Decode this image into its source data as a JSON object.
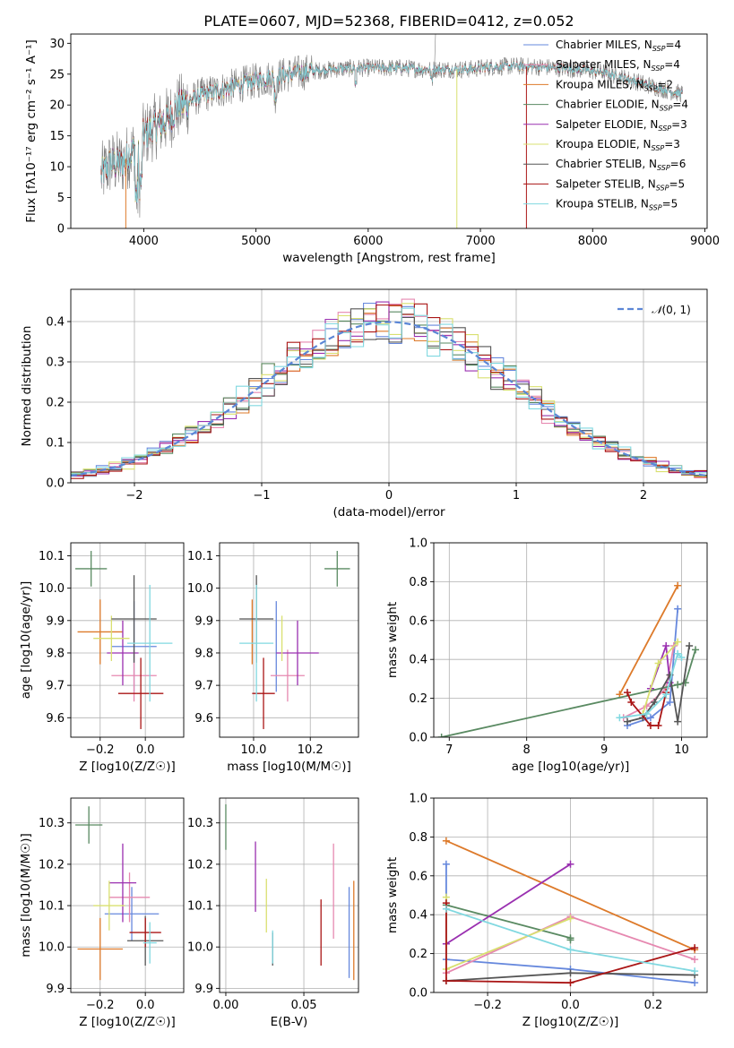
{
  "figure_title": "PLATE=0607, MJD=52368, FIBERID=0412, z=0.052",
  "colors": {
    "Chabrier MILES": "#6688dd",
    "Salpeter MILES": "#e688b0",
    "Kroupa MILES": "#dd7a2a",
    "Chabrier ELODIE": "#5a8a62",
    "Salpeter ELODIE": "#9a30b0",
    "Kroupa ELODIE": "#d9e070",
    "Chabrier STELIB": "#555555",
    "Salpeter STELIB": "#aa1515",
    "Kroupa STELIB": "#80d8e0"
  },
  "chart_data": [
    {
      "id": "spectrum",
      "type": "line",
      "title": "PLATE=0607, MJD=52368, FIBERID=0412, z=0.052",
      "xlabel": "wavelength [Angstrom, rest frame]",
      "ylabel": "Flux [fλ10⁻¹⁷ erg cm⁻² s⁻¹ A⁻¹]",
      "xlim": [
        3350,
        9020
      ],
      "ylim": [
        0,
        31.5
      ],
      "xticks": [
        4000,
        5000,
        6000,
        7000,
        8000,
        9000
      ],
      "yticks": [
        0,
        5,
        10,
        15,
        20,
        25,
        30
      ],
      "legend_location": "top-right",
      "legend": [
        "Chabrier MILES, NSSP=4",
        "Salpeter MILES, NSSP=4",
        "Kroupa MILES, NSSP=2",
        "Chabrier ELODIE, NSSP=4",
        "Salpeter ELODIE, NSSP=3",
        "Kroupa ELODIE, NSSP=3",
        "Chabrier STELIB, NSSP=6",
        "Salpeter STELIB, NSSP=5",
        "Kroupa STELIB, NSSP=5"
      ],
      "continuum": {
        "x": [
          3620,
          3700,
          3800,
          3900,
          4000,
          4100,
          4200,
          4300,
          4400,
          4500,
          4700,
          4900,
          5100,
          5300,
          5500,
          5700,
          5900,
          6100,
          6300,
          6500,
          6700,
          6900,
          7100,
          7300,
          7500,
          7700,
          7900,
          8100,
          8300,
          8500,
          8700,
          8800
        ],
        "y": [
          8.5,
          10.5,
          10.5,
          12.5,
          15,
          16.5,
          17.5,
          19.5,
          20.5,
          21.5,
          22.5,
          23.5,
          24.3,
          25,
          25.5,
          25.8,
          26,
          26,
          26,
          25.8,
          25.8,
          25.8,
          26.2,
          26.3,
          26.2,
          26,
          25.7,
          25.3,
          24.3,
          23.2,
          22.2,
          21.8
        ]
      },
      "notes": "data spectrum drawn in grey behind nine overlapping model spectra"
    },
    {
      "id": "residuals",
      "type": "histogram",
      "xlabel": "(data-model)/error",
      "ylabel": "Normed distribution",
      "xlim": [
        -2.5,
        2.5
      ],
      "ylim": [
        0,
        0.48
      ],
      "xticks": [
        -2,
        -1,
        0,
        1,
        2
      ],
      "yticks": [
        0,
        0.1,
        0.2,
        0.3,
        0.4
      ],
      "bin_width": 0.1,
      "reference_curve": "N(0,1)",
      "legend_location": "top-right"
    },
    {
      "id": "age_vs_Z",
      "type": "scatter",
      "xlabel": "Z [log10(Z/Z☉)]",
      "ylabel": "age  [log10(age/yr)]",
      "xlim": [
        -0.33,
        0.17
      ],
      "ylim": [
        9.54,
        10.14
      ],
      "xticks": [
        -0.2,
        0.0
      ],
      "yticks": [
        9.6,
        9.7,
        9.8,
        9.9,
        10.0,
        10.1
      ],
      "points": [
        {
          "model": "Chabrier MILES",
          "x": -0.05,
          "xerr": 0.1,
          "y": 9.82,
          "yerr": 0.14
        },
        {
          "model": "Salpeter MILES",
          "x": -0.05,
          "xerr": 0.1,
          "y": 9.73,
          "yerr": 0.08
        },
        {
          "model": "Kroupa MILES",
          "x": -0.2,
          "xerr": 0.1,
          "y": 9.865,
          "yerr": 0.1
        },
        {
          "model": "Chabrier ELODIE",
          "x": -0.24,
          "xerr": 0.07,
          "y": 10.06,
          "yerr": 0.055
        },
        {
          "model": "Salpeter ELODIE",
          "x": -0.1,
          "xerr": 0.07,
          "y": 9.8,
          "yerr": 0.1
        },
        {
          "model": "Kroupa ELODIE",
          "x": -0.15,
          "xerr": 0.08,
          "y": 9.845,
          "yerr": 0.07
        },
        {
          "model": "Chabrier STELIB",
          "x": -0.05,
          "xerr": 0.1,
          "y": 9.905,
          "yerr": 0.135
        },
        {
          "model": "Salpeter STELIB",
          "x": -0.02,
          "xerr": 0.1,
          "y": 9.675,
          "yerr": 0.11
        },
        {
          "model": "Kroupa STELIB",
          "x": 0.02,
          "xerr": 0.1,
          "y": 9.83,
          "yerr": 0.18
        }
      ]
    },
    {
      "id": "age_vs_mass",
      "type": "scatter",
      "xlabel": "mass [log10(M/M☉)]",
      "xlim": [
        9.88,
        10.37
      ],
      "ylim": [
        9.54,
        10.14
      ],
      "xticks": [
        10.0,
        10.2
      ],
      "yticks": [
        9.6,
        9.7,
        9.8,
        9.9,
        10.0,
        10.1
      ],
      "points": [
        {
          "model": "Chabrier MILES",
          "x": 10.08,
          "xerr": 0.0,
          "y": 9.82,
          "yerr": 0.14
        },
        {
          "model": "Salpeter MILES",
          "x": 10.12,
          "xerr": 0.06,
          "y": 9.73,
          "yerr": 0.08
        },
        {
          "model": "Kroupa MILES",
          "x": 9.995,
          "xerr": 0.0,
          "y": 9.865,
          "yerr": 0.1
        },
        {
          "model": "Chabrier ELODIE",
          "x": 10.295,
          "xerr": 0.045,
          "y": 10.06,
          "yerr": 0.055
        },
        {
          "model": "Salpeter ELODIE",
          "x": 10.155,
          "xerr": 0.075,
          "y": 9.8,
          "yerr": 0.1
        },
        {
          "model": "Kroupa ELODIE",
          "x": 10.1,
          "xerr": 0.0,
          "y": 9.845,
          "yerr": 0.07
        },
        {
          "model": "Chabrier STELIB",
          "x": 10.01,
          "xerr": 0.06,
          "y": 9.905,
          "yerr": 0.135
        },
        {
          "model": "Salpeter STELIB",
          "x": 10.035,
          "xerr": 0.04,
          "y": 9.675,
          "yerr": 0.11
        },
        {
          "model": "Kroupa STELIB",
          "x": 10.01,
          "xerr": 0.06,
          "y": 9.83,
          "yerr": 0.18
        }
      ]
    },
    {
      "id": "weight_vs_age",
      "type": "line",
      "xlabel": "age  [log10(age/yr)]",
      "ylabel": "mass weight",
      "xlim": [
        6.8,
        10.33
      ],
      "ylim": [
        0,
        1.0
      ],
      "xticks": [
        7,
        8,
        9,
        10
      ],
      "yticks": [
        0.0,
        0.2,
        0.4,
        0.6,
        0.8,
        1.0
      ],
      "series": [
        {
          "model": "Chabrier MILES",
          "x": [
            9.3,
            9.6,
            9.85,
            9.95
          ],
          "y": [
            0.06,
            0.1,
            0.18,
            0.66
          ]
        },
        {
          "model": "Salpeter MILES",
          "x": [
            9.25,
            9.55,
            9.8,
            9.9
          ],
          "y": [
            0.1,
            0.16,
            0.25,
            0.47
          ]
        },
        {
          "model": "Kroupa MILES",
          "x": [
            9.2,
            9.95
          ],
          "y": [
            0.22,
            0.78
          ]
        },
        {
          "model": "Chabrier ELODIE",
          "x": [
            6.9,
            9.95,
            10.05,
            10.18
          ],
          "y": [
            0.0,
            0.27,
            0.28,
            0.45
          ]
        },
        {
          "model": "Salpeter ELODIE",
          "x": [
            9.6,
            9.8,
            9.85
          ],
          "y": [
            0.25,
            0.47,
            0.28
          ]
        },
        {
          "model": "Kroupa ELODIE",
          "x": [
            9.5,
            9.7,
            9.95
          ],
          "y": [
            0.12,
            0.38,
            0.49
          ]
        },
        {
          "model": "Chabrier STELIB",
          "x": [
            9.3,
            9.5,
            9.65,
            9.85,
            9.95,
            10.1
          ],
          "y": [
            0.08,
            0.1,
            0.18,
            0.32,
            0.08,
            0.47
          ]
        },
        {
          "model": "Salpeter STELIB",
          "x": [
            9.3,
            9.35,
            9.6,
            9.7,
            9.8
          ],
          "y": [
            0.23,
            0.18,
            0.06,
            0.06,
            0.23
          ]
        },
        {
          "model": "Kroupa STELIB",
          "x": [
            9.2,
            9.55,
            9.8,
            9.95,
            10.0
          ],
          "y": [
            0.1,
            0.12,
            0.22,
            0.43,
            0.41
          ]
        }
      ]
    },
    {
      "id": "mass_vs_Z",
      "type": "scatter",
      "xlabel": "Z [log10(Z/Z☉)]",
      "ylabel": "mass [log10(M/M☉)]",
      "xlim": [
        -0.33,
        0.17
      ],
      "ylim": [
        9.89,
        10.36
      ],
      "xticks": [
        -0.2,
        0.0
      ],
      "yticks": [
        9.9,
        10.0,
        10.1,
        10.2,
        10.3
      ],
      "points": [
        {
          "model": "Chabrier MILES",
          "x": -0.06,
          "xerr": 0.12,
          "y": 10.08,
          "yerr": 0.065
        },
        {
          "model": "Salpeter MILES",
          "x": -0.07,
          "xerr": 0.09,
          "y": 10.12,
          "yerr": 0.06
        },
        {
          "model": "Kroupa MILES",
          "x": -0.2,
          "xerr": 0.1,
          "y": 9.995,
          "yerr": 0.075
        },
        {
          "model": "Chabrier ELODIE",
          "x": -0.25,
          "xerr": 0.06,
          "y": 10.295,
          "yerr": 0.045
        },
        {
          "model": "Salpeter ELODIE",
          "x": -0.1,
          "xerr": 0.06,
          "y": 10.155,
          "yerr": 0.095
        },
        {
          "model": "Kroupa ELODIE",
          "x": -0.16,
          "xerr": 0.07,
          "y": 10.1,
          "yerr": 0.06
        },
        {
          "model": "Chabrier STELIB",
          "x": 0.0,
          "xerr": 0.08,
          "y": 10.015,
          "yerr": 0.06
        },
        {
          "model": "Salpeter STELIB",
          "x": 0.0,
          "xerr": 0.07,
          "y": 10.035,
          "yerr": 0.035
        },
        {
          "model": "Kroupa STELIB",
          "x": 0.02,
          "xerr": 0.03,
          "y": 10.01,
          "yerr": 0.05
        }
      ]
    },
    {
      "id": "mass_vs_EBV",
      "type": "scatter",
      "xlabel": "E(B-V)",
      "xlim": [
        -0.004,
        0.085
      ],
      "ylim": [
        9.89,
        10.36
      ],
      "xticks": [
        0.0,
        0.05
      ],
      "yticks": [
        9.9,
        10.0,
        10.1,
        10.2,
        10.3
      ],
      "points": [
        {
          "model": "Chabrier MILES",
          "x": 0.079,
          "y": 10.035,
          "yerr": 0.11
        },
        {
          "model": "Salpeter MILES",
          "x": 0.069,
          "y": 10.135,
          "yerr": 0.115
        },
        {
          "model": "Kroupa MILES",
          "x": 0.082,
          "y": 10.04,
          "yerr": 0.12
        },
        {
          "model": "Chabrier ELODIE",
          "x": 0.0,
          "y": 10.29,
          "yerr": 0.055
        },
        {
          "model": "Salpeter ELODIE",
          "x": 0.019,
          "y": 10.17,
          "yerr": 0.085
        },
        {
          "model": "Kroupa ELODIE",
          "x": 0.026,
          "y": 10.1,
          "yerr": 0.065
        },
        {
          "model": "Chabrier STELIB",
          "x": 0.03,
          "y": 9.995,
          "yerr": 0.04
        },
        {
          "model": "Salpeter STELIB",
          "x": 0.061,
          "y": 10.035,
          "yerr": 0.08
        },
        {
          "model": "Kroupa STELIB",
          "x": 0.03,
          "y": 10.0,
          "yerr": 0.04
        }
      ]
    },
    {
      "id": "weight_vs_Z",
      "type": "line",
      "xlabel": "Z [log10(Z/Z☉)]",
      "ylabel": "mass weight",
      "xlim": [
        -0.33,
        0.33
      ],
      "ylim": [
        0,
        1.0
      ],
      "xticks": [
        -0.2,
        0.0,
        0.2
      ],
      "yticks": [
        0.0,
        0.2,
        0.4,
        0.6,
        0.8,
        1.0
      ],
      "series": [
        {
          "model": "Chabrier MILES",
          "x": [
            -0.3,
            -0.3,
            0.0,
            0.3
          ],
          "y": [
            0.66,
            0.17,
            0.12,
            0.05
          ]
        },
        {
          "model": "Salpeter MILES",
          "x": [
            -0.3,
            0.0,
            0.3
          ],
          "y": [
            0.1,
            0.39,
            0.17
          ]
        },
        {
          "model": "Kroupa MILES",
          "x": [
            -0.3,
            0.3
          ],
          "y": [
            0.78,
            0.22
          ]
        },
        {
          "model": "Chabrier ELODIE",
          "x": [
            -0.3,
            0.0,
            0.0
          ],
          "y": [
            0.45,
            0.28,
            0.27
          ]
        },
        {
          "model": "Salpeter ELODIE",
          "x": [
            -0.3,
            0.0
          ],
          "y": [
            0.25,
            0.66
          ]
        },
        {
          "model": "Kroupa ELODIE",
          "x": [
            -0.3,
            -0.3,
            0.0
          ],
          "y": [
            0.49,
            0.12,
            0.38
          ]
        },
        {
          "model": "Chabrier STELIB",
          "x": [
            -0.3,
            0.0,
            0.3
          ],
          "y": [
            0.06,
            0.1,
            0.09
          ]
        },
        {
          "model": "Salpeter STELIB",
          "x": [
            -0.3,
            -0.3,
            0.0,
            0.3
          ],
          "y": [
            0.46,
            0.06,
            0.05,
            0.23
          ]
        },
        {
          "model": "Kroupa STELIB",
          "x": [
            -0.3,
            0.0,
            0.3
          ],
          "y": [
            0.43,
            0.22,
            0.11
          ]
        }
      ]
    }
  ]
}
